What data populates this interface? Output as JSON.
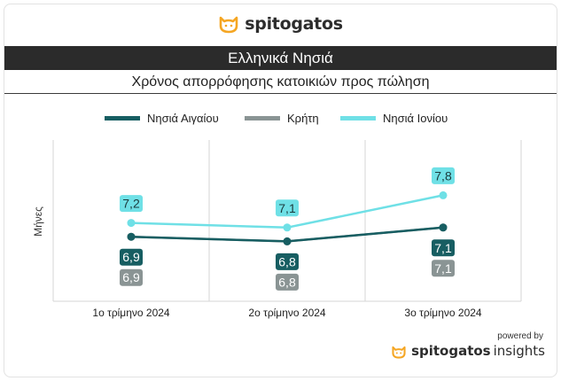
{
  "brand": {
    "name": "spitogatos",
    "accent": "#f5a623"
  },
  "banner": {
    "text": "Ελληνικά Νησιά"
  },
  "footer": {
    "powered_by": "powered by",
    "brand_name": "spitogatos",
    "brand_suffix": "insights"
  },
  "chart_data": {
    "type": "line",
    "title": "Χρόνος απορρόφησης κατοικιών προς πώληση",
    "ylabel": "Μήνες",
    "xlabel": "",
    "categories": [
      "1ο τρίμηνο 2024",
      "2ο τρίμηνο 2024",
      "3ο τρίμηνο 2024"
    ],
    "ylim": [
      5.5,
      9.0
    ],
    "grid": "vertical",
    "legend_position": "top",
    "series": [
      {
        "name": "Νησιά Αιγαίου",
        "values": [
          6.9,
          6.8,
          7.1
        ],
        "labels": [
          "6,9",
          "6,8",
          "7,1"
        ],
        "color": "#175e62"
      },
      {
        "name": "Κρήτη",
        "values": [
          6.9,
          6.8,
          7.1
        ],
        "labels": [
          "6,9",
          "6,8",
          "7,1"
        ],
        "color": "#8a9494"
      },
      {
        "name": "Νησιά Ιονίου",
        "values": [
          7.2,
          7.1,
          7.8
        ],
        "labels": [
          "7,2",
          "7,1",
          "7,8"
        ],
        "color": "#6fe0e6"
      }
    ]
  }
}
